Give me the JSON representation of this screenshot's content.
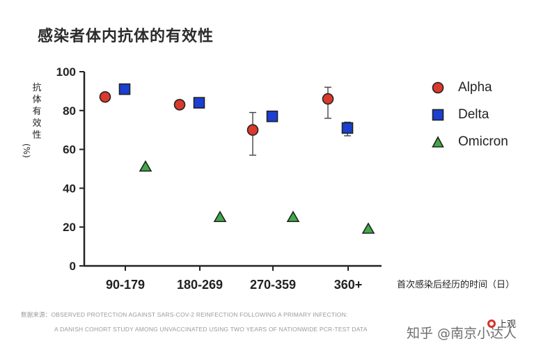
{
  "title": "感染者体内抗体的有效性",
  "ylabel": "抗体有效性",
  "ylabel_unit": "(%)",
  "xlabel": "首次感染后经历的时间（日）",
  "source_line1": "数据来源：OBSERVED PROTECTION AGAINST SARS-COV-2 REINFECTION FOLLOWING A PRIMARY INFECTION:",
  "source_line2": "A DANISH COHORT STUDY AMONG UNVACCINATED USING TWO YEARS OF NATIONWIDE PCR-TEST DATA",
  "watermark": "知乎 @南京小达人",
  "logo_text": "上观",
  "legend_entries": [
    "Alpha",
    "Delta",
    "Omicron"
  ],
  "chart_data": {
    "type": "scatter",
    "title": "感染者体内抗体的有效性",
    "xlabel": "首次感染后经历的时间（日）",
    "ylabel": "抗体有效性 (%)",
    "categories": [
      "90-179",
      "180-269",
      "270-359",
      "360+"
    ],
    "ylim": [
      0,
      100
    ],
    "yticks": [
      0,
      20,
      40,
      60,
      80,
      100
    ],
    "grid": false,
    "legend_position": "right",
    "series": [
      {
        "name": "Alpha",
        "marker": "circle",
        "color": "#d93a2b",
        "values": [
          87,
          83,
          70,
          86
        ],
        "error_low": [
          null,
          null,
          57,
          76
        ],
        "error_high": [
          null,
          null,
          79,
          92
        ]
      },
      {
        "name": "Delta",
        "marker": "square",
        "color": "#1a3fd1",
        "values": [
          91,
          84,
          77,
          71
        ],
        "error_low": [
          null,
          null,
          null,
          67
        ],
        "error_high": [
          null,
          null,
          null,
          74
        ]
      },
      {
        "name": "Omicron",
        "marker": "triangle",
        "color": "#3faa48",
        "values": [
          51,
          25,
          25,
          19
        ],
        "error_low": [
          null,
          null,
          null,
          null
        ],
        "error_high": [
          null,
          null,
          null,
          null
        ]
      }
    ]
  }
}
